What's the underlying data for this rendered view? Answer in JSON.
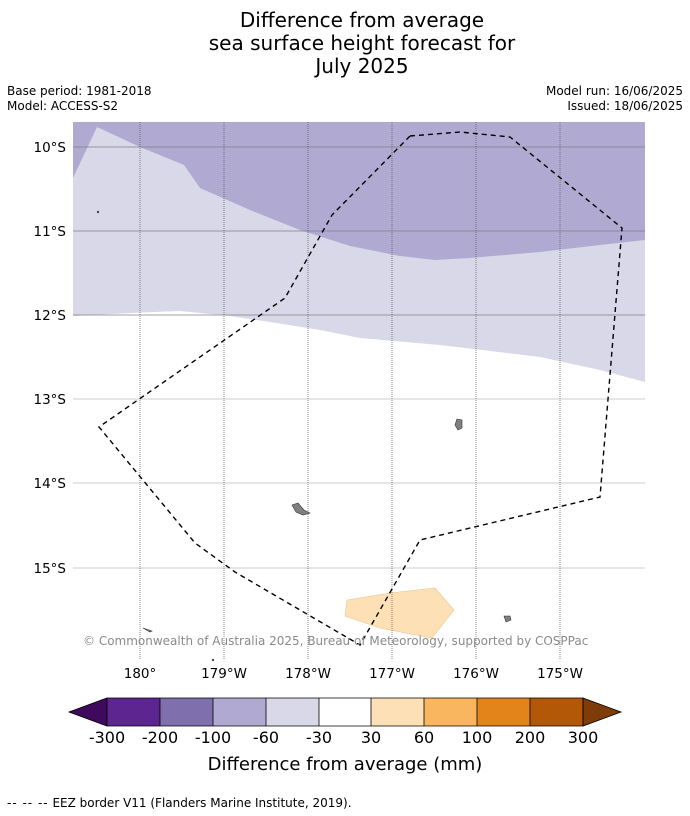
{
  "title": {
    "line1": "Difference from average",
    "line2": "sea surface height forecast for",
    "line3": "July 2025"
  },
  "meta": {
    "base_period": "Base period: 1981-2018",
    "model": "Model: ACCESS-S2",
    "model_run": "Model run: 16/06/2025",
    "issued": "Issued: 18/06/2025"
  },
  "map": {
    "lat_labels": [
      "10°S",
      "11°S",
      "12°S",
      "13°S",
      "14°S",
      "15°S"
    ],
    "lon_labels": [
      "180°",
      "179°W",
      "178°W",
      "177°W",
      "176°W",
      "175°W"
    ],
    "attribution": "© Commonwealth of Australia 2025, Bureau of Meteorology, supported by COSPPac",
    "colors": {
      "minus100_to_minus60": "#b0aad2",
      "minus60_to_minus30": "#d8d8e8",
      "plus30_to_60": "#fde0b6",
      "land": "#808080",
      "grid": "#808080",
      "eez": "#000000"
    }
  },
  "colorbar": {
    "labels": [
      "-300",
      "-200",
      "-100",
      "-60",
      "-30",
      "30",
      "60",
      "100",
      "200",
      "300"
    ],
    "colors": [
      "#3f0a5e",
      "#5c2590",
      "#7f70ad",
      "#b0aad2",
      "#d8d8e8",
      "#ffffff",
      "#fde0b6",
      "#f9b65e",
      "#e3841b",
      "#b35806",
      "#7f3b08"
    ],
    "title": "Difference from average (mm)"
  },
  "footer": {
    "legend_dashes": "-- -- --",
    "legend_text": "EEZ border V11 (Flanders Marine Institute, 2019)."
  }
}
